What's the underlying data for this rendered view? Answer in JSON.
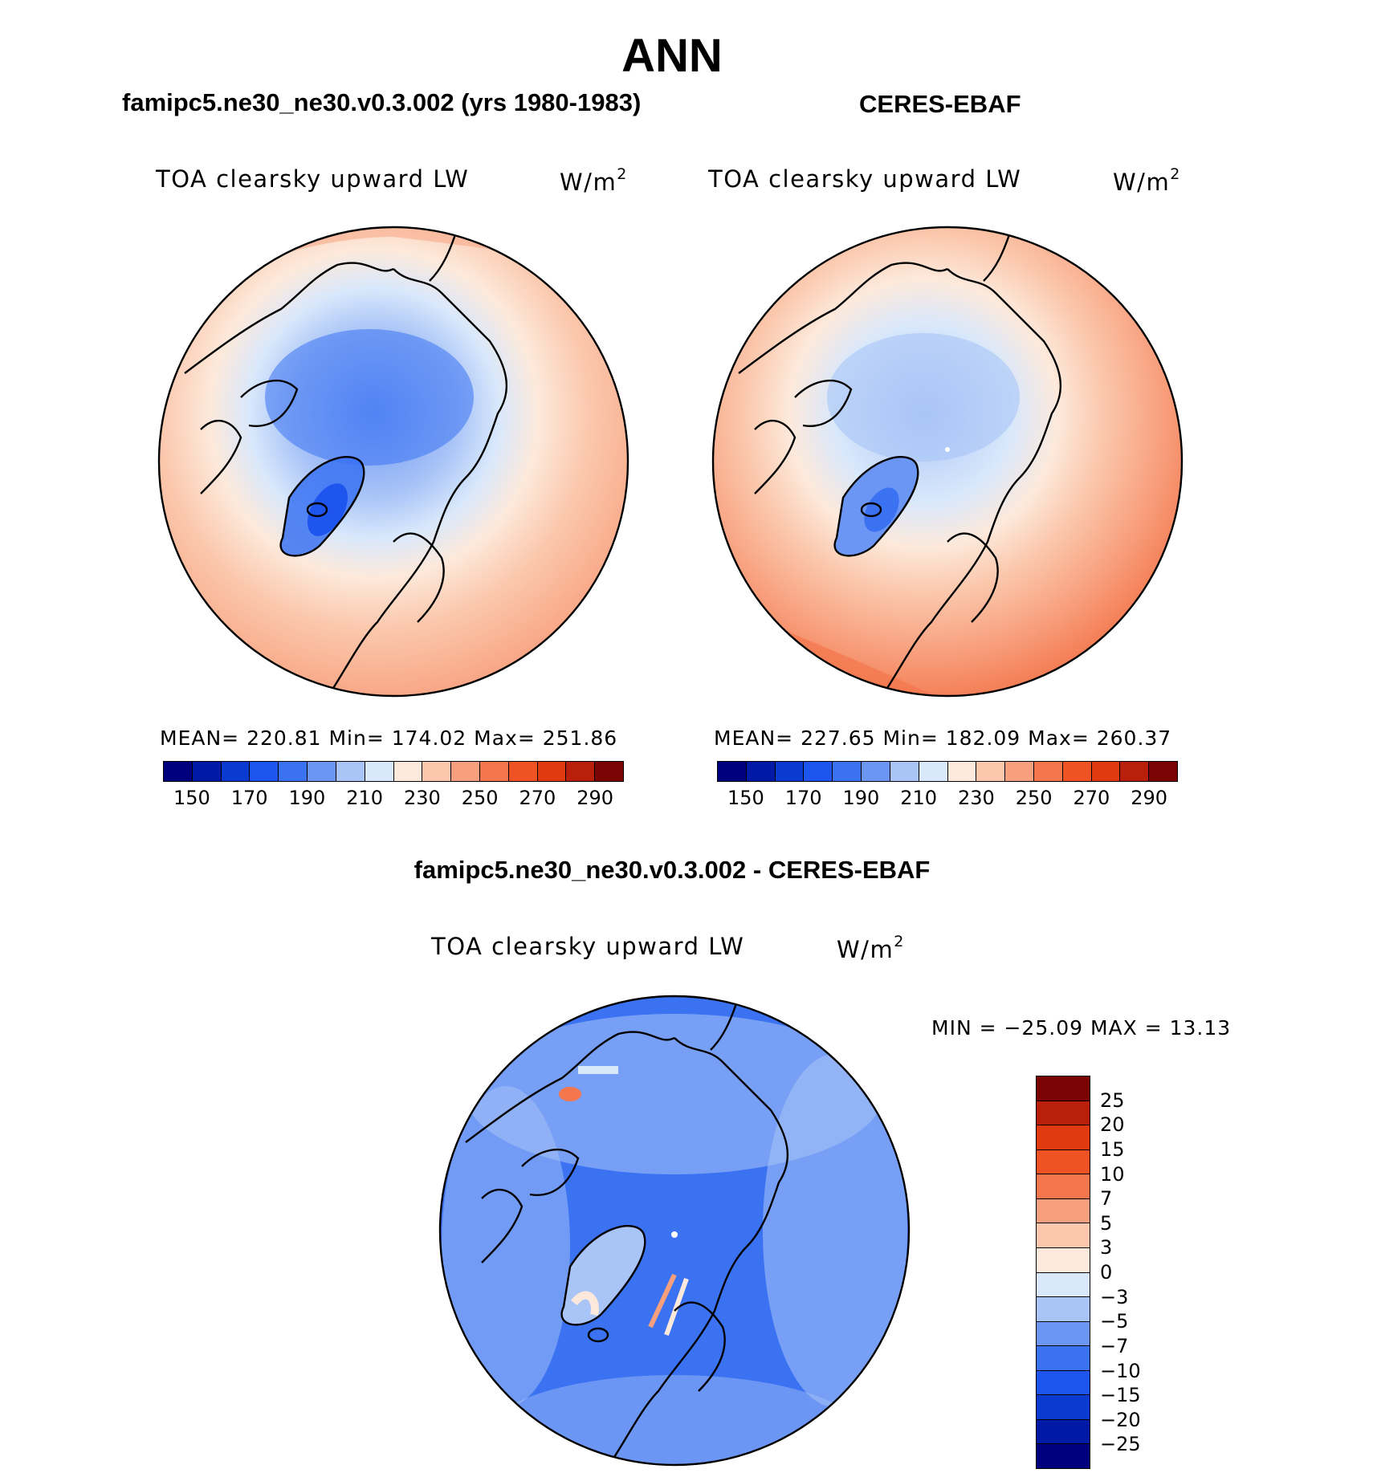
{
  "title": "ANN",
  "panels": {
    "model": {
      "case_title": "famipc5.ne30_ne30.v0.3.002 (yrs 1980-1983)",
      "variable": "TOA clearsky upward LW",
      "units_base": "W/m",
      "units_exp": "2",
      "stats": "MEAN= 220.81   Min= 174.02   Max= 251.86",
      "mean": 220.81,
      "min": 174.02,
      "max": 251.86
    },
    "obs": {
      "case_title": "CERES-EBAF",
      "variable": "TOA clearsky upward LW",
      "units_base": "W/m",
      "units_exp": "2",
      "stats": "MEAN= 227.65   Min= 182.09   Max= 260.37",
      "mean": 227.65,
      "min": 182.09,
      "max": 260.37
    },
    "diff": {
      "case_title": "famipc5.ne30_ne30.v0.3.002 - CERES-EBAF",
      "variable": "TOA clearsky upward LW",
      "units_base": "W/m",
      "units_exp": "2",
      "stats": "MIN = −25.09 MAX =  13.13",
      "min": -25.09,
      "max": 13.13
    }
  },
  "colorbar_abs": {
    "colors": [
      "#00007f",
      "#001aa6",
      "#0b3ad1",
      "#1f55ef",
      "#3a72f2",
      "#6b96f4",
      "#a9c4f7",
      "#d9e8fb",
      "#fde9db",
      "#fbc8ad",
      "#f8a07e",
      "#f3764c",
      "#ef5324",
      "#e03b10",
      "#b9200c",
      "#7a0404"
    ],
    "labels": [
      "150",
      "170",
      "190",
      "210",
      "230",
      "250",
      "270",
      "290"
    ]
  },
  "colorbar_diff": {
    "colors": [
      "#7a0404",
      "#b9200c",
      "#e03b10",
      "#ef5324",
      "#f3764c",
      "#f8a07e",
      "#fbc8ad",
      "#fde9db",
      "#d9e8fb",
      "#a9c4f7",
      "#6b96f4",
      "#3a72f2",
      "#1f55ef",
      "#0b3ad1",
      "#001aa6",
      "#00007f"
    ],
    "labels": [
      "25",
      "20",
      "15",
      "10",
      "7",
      "5",
      "3",
      "0",
      "−3",
      "−5",
      "−7",
      "−10",
      "−15",
      "−20",
      "−25"
    ]
  }
}
